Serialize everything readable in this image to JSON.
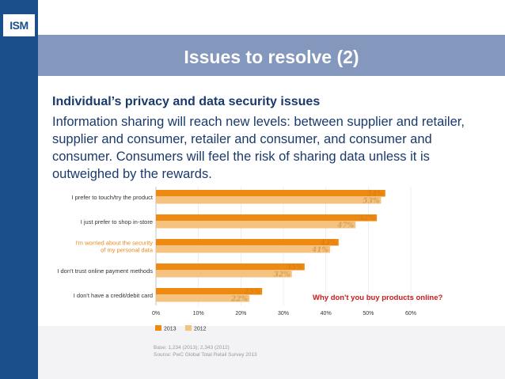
{
  "header": {
    "logo_text": "ISM",
    "title": "Issues to resolve (2)"
  },
  "slide": {
    "subheading": "Individual’s privacy and data security issues",
    "body": "Information sharing will reach new levels: between supplier and retailer, supplier and consumer, retailer and consumer, and consumer and consumer. Consumers will feel the risk of sharing data unless it is outweighed by the rewards."
  },
  "colors": {
    "accent_2013": "#ee8a12",
    "accent_2012": "#f5c27f",
    "title_band": "#8497bd",
    "side_bar": "#1a4f8c",
    "question": "#cc1a1a"
  },
  "chart_data": {
    "type": "bar",
    "orientation": "horizontal",
    "categories": [
      "I prefer to touch/try the product",
      "I just prefer to shop in-store",
      "I'm worried about the security of my personal data",
      "I don't trust online payment methods",
      "I don't have a credit/debit card"
    ],
    "series": [
      {
        "name": "2013",
        "values": [
          54,
          52,
          43,
          35,
          25
        ]
      },
      {
        "name": "2012",
        "values": [
          53,
          47,
          41,
          32,
          22
        ]
      }
    ],
    "value_suffix": "%",
    "xlim": [
      0,
      60
    ],
    "xticks": [
      "0%",
      "10%",
      "20%",
      "30%",
      "40%",
      "50%",
      "60%"
    ],
    "legend": [
      "2013",
      "2012"
    ],
    "annotation": "Why don't you buy products online?",
    "source_lines": [
      "Base: 1,234 (2013); 2,343 (2012)",
      "Source: PwC Global Total Retail Survey 2013"
    ]
  }
}
